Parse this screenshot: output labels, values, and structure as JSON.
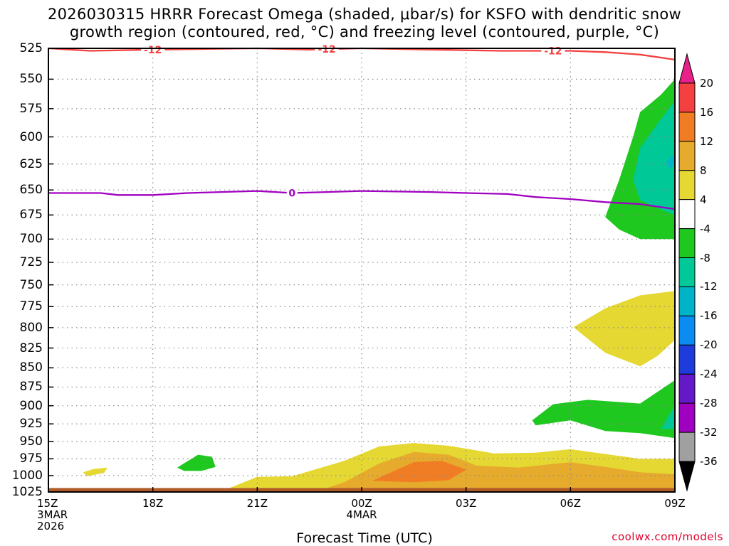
{
  "title_line1": "2026030315 HRRR Forecast Omega (shaded, μbar/s) for KSFO with dendritic snow",
  "title_line2": "growth region (contoured, red, °C) and freezing level (contoured, purple, °C)",
  "x_axis_title": "Forecast Time (UTC)",
  "credit": "coolwx.com/models",
  "chart_data": {
    "type": "time-height contour",
    "x_ticks": [
      {
        "hours": 0,
        "lines": [
          "15Z",
          "3MAR",
          "2026"
        ]
      },
      {
        "hours": 3,
        "lines": [
          "18Z"
        ]
      },
      {
        "hours": 6,
        "lines": [
          "21Z"
        ]
      },
      {
        "hours": 9,
        "lines": [
          "00Z",
          "4MAR"
        ]
      },
      {
        "hours": 12,
        "lines": [
          "03Z"
        ]
      },
      {
        "hours": 15,
        "lines": [
          "06Z"
        ]
      },
      {
        "hours": 18,
        "lines": [
          "09Z"
        ]
      }
    ],
    "x_range_hours": [
      0,
      18
    ],
    "y_axis_pressure_levels": [
      525,
      550,
      575,
      600,
      625,
      650,
      675,
      700,
      725,
      750,
      775,
      800,
      825,
      850,
      875,
      900,
      925,
      950,
      975,
      1000,
      1025
    ],
    "y_range": [
      1025,
      525
    ],
    "grid": true,
    "colorbar": {
      "labels": [
        "20",
        "16",
        "12",
        "8",
        "4",
        "-4",
        "-8",
        "-12",
        "-16",
        "-20",
        "-24",
        "-28",
        "-32",
        "-36"
      ],
      "colors": [
        "#e8208a",
        "#f44040",
        "#f07c24",
        "#e6aa2c",
        "#e6d832",
        "#ffffff",
        "#1ec81e",
        "#00c896",
        "#00b4c8",
        "#0a8cf0",
        "#1e3cdc",
        "#6418c8",
        "#a000c0",
        "#a0a0a0",
        "#000000"
      ]
    },
    "contours": [
      {
        "label": "-12",
        "color": "#f44040",
        "points": [
          [
            0,
            525
          ],
          [
            1.2,
            527
          ],
          [
            3,
            526
          ],
          [
            6,
            525
          ],
          [
            7.5,
            526
          ],
          [
            9,
            525
          ],
          [
            11,
            526
          ],
          [
            13,
            527
          ],
          [
            14.5,
            527
          ],
          [
            15,
            527
          ],
          [
            16,
            528
          ],
          [
            17,
            530
          ],
          [
            18,
            534
          ]
        ],
        "label_at_hours": [
          3,
          8,
          14.5
        ]
      },
      {
        "label": "0",
        "color": "#a000c0",
        "points": [
          [
            0,
            653
          ],
          [
            1.5,
            653
          ],
          [
            2,
            655
          ],
          [
            3,
            655
          ],
          [
            4,
            653
          ],
          [
            6,
            651
          ],
          [
            7,
            653
          ],
          [
            8,
            652
          ],
          [
            9,
            651
          ],
          [
            11,
            652
          ],
          [
            12,
            653
          ],
          [
            13.2,
            654
          ],
          [
            14,
            657
          ],
          [
            15,
            659
          ],
          [
            16,
            662
          ],
          [
            17,
            664
          ],
          [
            18,
            669
          ]
        ],
        "label_at_hours": [
          7
        ]
      }
    ],
    "shaded_regions": [
      {
        "value_class": "4 to 8",
        "color": "#e6d832",
        "points": [
          [
            1.0,
            995
          ],
          [
            1.3,
            990
          ],
          [
            1.7,
            988
          ],
          [
            1.6,
            996
          ],
          [
            1.1,
            1001
          ]
        ]
      },
      {
        "value_class": "-4 to -8",
        "color": "#1ec81e",
        "points": [
          [
            3.7,
            988
          ],
          [
            4.3,
            969
          ],
          [
            4.7,
            972
          ],
          [
            4.8,
            987
          ],
          [
            4.4,
            993
          ],
          [
            3.9,
            993
          ]
        ]
      },
      {
        "value_class": "4 to 8",
        "color": "#e6d832",
        "points": [
          [
            5.2,
            1019
          ],
          [
            6.0,
            1002
          ],
          [
            7.0,
            1001
          ],
          [
            8.5,
            978
          ],
          [
            9.5,
            957
          ],
          [
            10.5,
            952
          ],
          [
            11.5,
            956
          ],
          [
            12.8,
            967
          ],
          [
            14,
            966
          ],
          [
            15,
            961
          ],
          [
            16.3,
            970
          ],
          [
            17,
            975
          ],
          [
            18,
            975
          ],
          [
            18,
            1019
          ]
        ]
      },
      {
        "value_class": "8 to 12",
        "color": "#e6aa2c",
        "points": [
          [
            8.0,
            1019
          ],
          [
            8.5,
            1010
          ],
          [
            9.5,
            982
          ],
          [
            10.5,
            965
          ],
          [
            11.5,
            969
          ],
          [
            12.3,
            985
          ],
          [
            13.5,
            988
          ],
          [
            15,
            980
          ],
          [
            16,
            987
          ],
          [
            17,
            995
          ],
          [
            18,
            998
          ],
          [
            18,
            1019
          ]
        ]
      },
      {
        "value_class": "12 to 16",
        "color": "#f07c24",
        "points": [
          [
            9.3,
            1008
          ],
          [
            10.5,
            980
          ],
          [
            11.3,
            978
          ],
          [
            12.0,
            991
          ],
          [
            11.5,
            1007
          ],
          [
            10.5,
            1010
          ]
        ]
      },
      {
        "value_class": "16 to 20 (brown band)",
        "color": "#b05a28",
        "points": [
          [
            0,
            1019
          ],
          [
            18,
            1019
          ],
          [
            18,
            1025
          ],
          [
            0,
            1025
          ]
        ]
      },
      {
        "value_class": "4 to 8",
        "color": "#e6d832",
        "points": [
          [
            15.1,
            799
          ],
          [
            16,
            777
          ],
          [
            17,
            762
          ],
          [
            18,
            757
          ],
          [
            18,
            815
          ],
          [
            17.5,
            835
          ],
          [
            17.0,
            848
          ],
          [
            16,
            831
          ],
          [
            15.1,
            800
          ]
        ]
      },
      {
        "value_class": "-4 to -8",
        "color": "#1ec81e",
        "points": [
          [
            13.9,
            920
          ],
          [
            14.5,
            898
          ],
          [
            15.5,
            892
          ],
          [
            17,
            897
          ],
          [
            18,
            866
          ],
          [
            18,
            945
          ],
          [
            17,
            938
          ],
          [
            16,
            935
          ],
          [
            15,
            920
          ],
          [
            14,
            927
          ]
        ]
      },
      {
        "value_class": "-8 to -12",
        "color": "#00c896",
        "points": [
          [
            17.6,
            932
          ],
          [
            18,
            900
          ],
          [
            18,
            932
          ]
        ]
      },
      {
        "value_class": "-4 to -8",
        "color": "#1ec81e",
        "points": [
          [
            16.0,
            677
          ],
          [
            16.4,
            640
          ],
          [
            16.8,
            600
          ],
          [
            17.0,
            578
          ],
          [
            17.6,
            563
          ],
          [
            18,
            550
          ],
          [
            18,
            700
          ],
          [
            17,
            700
          ],
          [
            16.4,
            690
          ]
        ]
      },
      {
        "value_class": "-8 to -12",
        "color": "#00c896",
        "points": [
          [
            16.8,
            640
          ],
          [
            17.0,
            610
          ],
          [
            17.5,
            588
          ],
          [
            18,
            568
          ],
          [
            18,
            675
          ],
          [
            17.5,
            668
          ],
          [
            17.0,
            660
          ]
        ]
      },
      {
        "value_class": "-12 to -16",
        "color": "#00b4c8",
        "points": [
          [
            17.75,
            624
          ],
          [
            17.9,
            617
          ],
          [
            18,
            620
          ],
          [
            17.9,
            630
          ]
        ]
      }
    ]
  }
}
